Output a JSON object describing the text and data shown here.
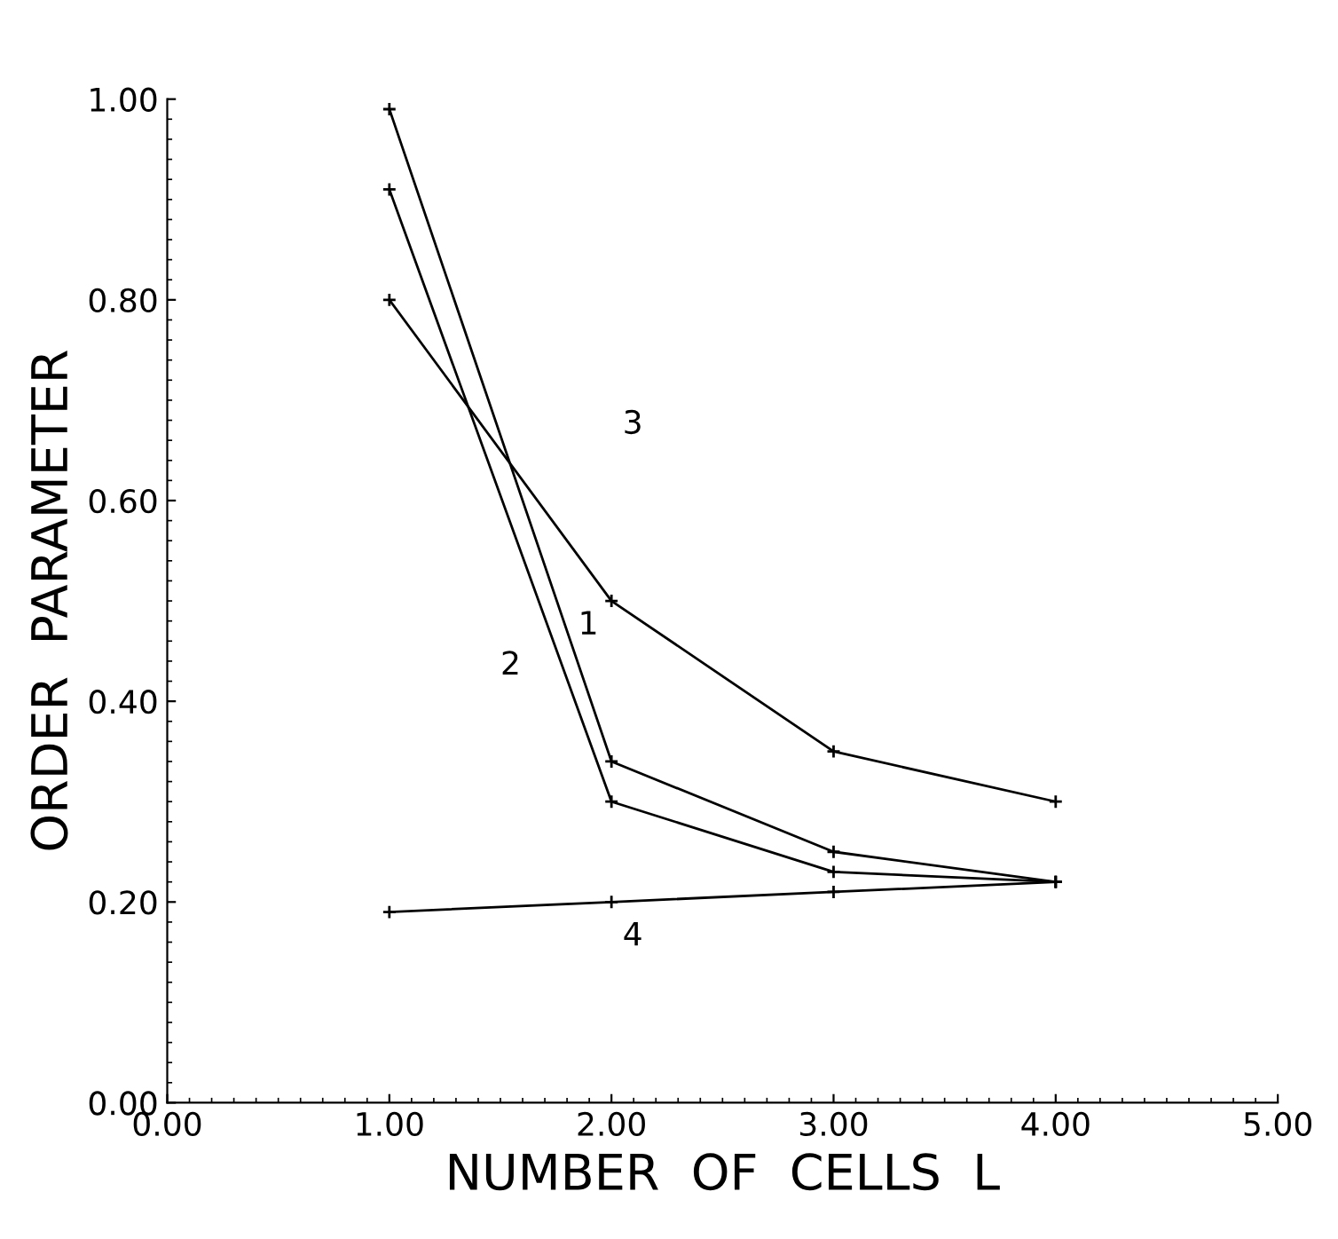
{
  "chart_data": {
    "type": "line",
    "xlabel": "NUMBER  OF  CELLS  L",
    "ylabel": "ORDER  PARAMETER",
    "series": [
      {
        "x": [
          1,
          2,
          3,
          4
        ],
        "values": [
          0.99,
          0.34,
          0.25,
          0.22
        ],
        "color": "#000000"
      },
      {
        "x": [
          1,
          2,
          3,
          4
        ],
        "values": [
          0.91,
          0.3,
          0.23,
          0.22
        ],
        "color": "#000000"
      },
      {
        "x": [
          1,
          2,
          3,
          4
        ],
        "values": [
          0.8,
          0.5,
          0.35,
          0.3
        ],
        "color": "#000000"
      },
      {
        "x": [
          1,
          2,
          3,
          4
        ],
        "values": [
          0.19,
          0.2,
          0.21,
          0.22
        ],
        "color": "#000000"
      }
    ],
    "annotations": [
      "1",
      "2",
      "3",
      "4"
    ],
    "xlim": [
      0,
      5
    ],
    "ylim": [
      0,
      1
    ],
    "xticks": [
      {
        "value": 0,
        "label": "0.00"
      },
      {
        "value": 1,
        "label": "1.00"
      },
      {
        "value": 2,
        "label": "2.00"
      },
      {
        "value": 3,
        "label": "3.00"
      },
      {
        "value": 4,
        "label": "4.00"
      },
      {
        "value": 5,
        "label": "5.00"
      }
    ],
    "yticks": [
      {
        "value": 0,
        "label": "0.00"
      },
      {
        "value": 0.2,
        "label": "0.20"
      },
      {
        "value": 0.4,
        "label": "0.40"
      },
      {
        "value": 0.6,
        "label": "0.60"
      },
      {
        "value": 0.8,
        "label": "0.80"
      },
      {
        "value": 1,
        "label": "1.00"
      }
    ],
    "marker": "cross",
    "grid": false,
    "legend": false
  }
}
